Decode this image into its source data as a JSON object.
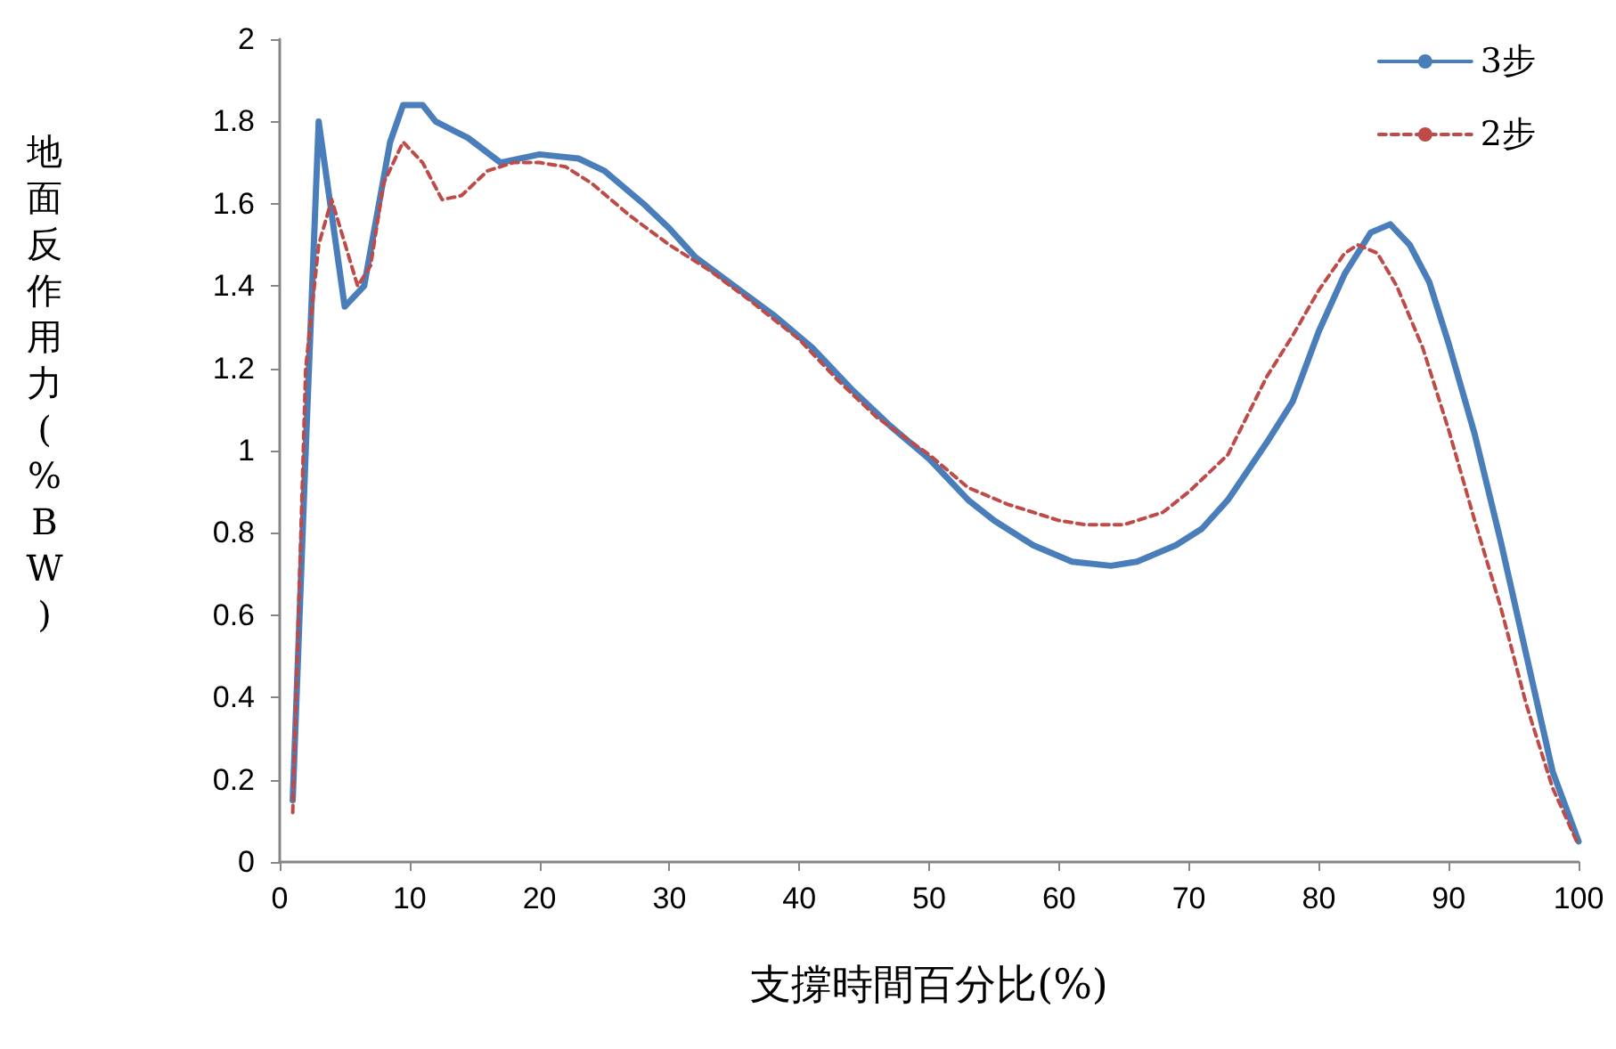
{
  "chart_data": {
    "type": "line",
    "xlabel": "支撐時間百分比(%)",
    "ylabel": "地面反作用力(%BW)",
    "xlim": [
      0,
      100
    ],
    "xticks": [
      0,
      10,
      20,
      30,
      40,
      50,
      60,
      70,
      80,
      90,
      100
    ],
    "ylim": [
      0,
      2
    ],
    "yticks": [
      0,
      0.2,
      0.4,
      0.6,
      0.8,
      1,
      1.2,
      1.4,
      1.6,
      1.8,
      2
    ],
    "grid": false,
    "legend": "top right",
    "marker": "none",
    "series": [
      {
        "name": "3步",
        "color": "#4a7ebb",
        "line_style": "solid",
        "x": [
          1,
          2,
          3,
          5,
          6.5,
          8.5,
          9.5,
          11,
          12,
          14.5,
          17,
          20,
          23,
          25,
          28,
          30,
          32,
          35,
          38,
          41,
          44,
          47,
          50,
          53,
          55,
          58,
          61,
          64,
          66,
          69,
          71,
          73,
          76,
          78,
          80,
          82,
          84,
          85.5,
          87,
          88.5,
          90,
          92,
          94,
          96,
          98,
          100
        ],
        "values": [
          0.15,
          1.0,
          1.8,
          1.35,
          1.4,
          1.75,
          1.84,
          1.84,
          1.8,
          1.76,
          1.7,
          1.72,
          1.71,
          1.68,
          1.6,
          1.54,
          1.47,
          1.4,
          1.33,
          1.25,
          1.15,
          1.06,
          0.98,
          0.88,
          0.83,
          0.77,
          0.73,
          0.72,
          0.73,
          0.77,
          0.81,
          0.88,
          1.02,
          1.12,
          1.29,
          1.43,
          1.53,
          1.55,
          1.5,
          1.41,
          1.26,
          1.04,
          0.78,
          0.5,
          0.22,
          0.05
        ]
      },
      {
        "name": "2步",
        "color": "#be4b48",
        "line_style": "dashed",
        "x": [
          1,
          2,
          3,
          4,
          6,
          7,
          8,
          9.5,
          11,
          12.5,
          14,
          16,
          18,
          20,
          22,
          24,
          27,
          30,
          33,
          36,
          40,
          43,
          46,
          50,
          53,
          56,
          60,
          62,
          65,
          68,
          70,
          73,
          76,
          78,
          80,
          82,
          83,
          84.5,
          86,
          88,
          90,
          92,
          94,
          96,
          98,
          100
        ],
        "values": [
          0.12,
          1.2,
          1.5,
          1.61,
          1.4,
          1.45,
          1.65,
          1.75,
          1.7,
          1.61,
          1.62,
          1.68,
          1.7,
          1.7,
          1.69,
          1.65,
          1.57,
          1.5,
          1.44,
          1.37,
          1.27,
          1.17,
          1.08,
          0.99,
          0.91,
          0.87,
          0.83,
          0.82,
          0.82,
          0.85,
          0.9,
          0.99,
          1.18,
          1.28,
          1.39,
          1.48,
          1.5,
          1.48,
          1.4,
          1.25,
          1.05,
          0.83,
          0.62,
          0.38,
          0.18,
          0.04
        ]
      }
    ]
  }
}
